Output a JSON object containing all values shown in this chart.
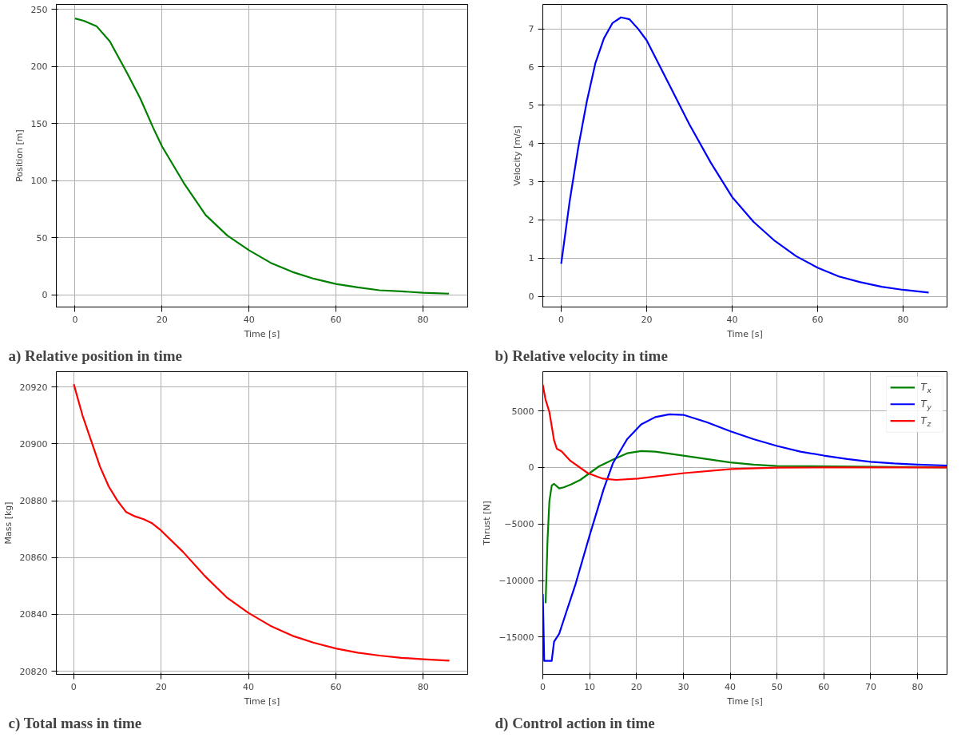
{
  "chart_data": [
    {
      "type": "line",
      "title": "a) Relative position in time",
      "xlabel": "Time [s]",
      "ylabel": "Position [m]",
      "grid": true,
      "legend": false,
      "xlim": [
        -4.3,
        90.3
      ],
      "ylim": [
        -10.7,
        254.3
      ],
      "xticks": [
        0,
        20,
        40,
        60,
        80
      ],
      "yticks": [
        0,
        50,
        100,
        150,
        200,
        250
      ],
      "series": [
        {
          "color": "#008000",
          "x": [
            0,
            2,
            5,
            8,
            10,
            12,
            15,
            18,
            20,
            25,
            30,
            35,
            40,
            45,
            50,
            55,
            60,
            65,
            70,
            75,
            80,
            86
          ],
          "values": [
            242,
            240,
            235,
            222,
            208,
            194,
            172,
            146,
            130,
            98,
            70,
            52,
            39,
            28,
            20,
            14,
            9.5,
            6.5,
            4,
            3,
            1.8,
            1
          ]
        }
      ]
    },
    {
      "type": "line",
      "title": "b) Relative velocity in time",
      "xlabel": "Time [s]",
      "ylabel": "Velocity [m/s]",
      "grid": true,
      "legend": false,
      "xlim": [
        -4.3,
        90.3
      ],
      "ylim": [
        -0.28,
        7.64
      ],
      "xticks": [
        0,
        20,
        40,
        60,
        80
      ],
      "yticks": [
        0,
        1,
        2,
        3,
        4,
        5,
        6,
        7
      ],
      "series": [
        {
          "color": "#0000ff",
          "x": [
            0,
            2,
            4,
            6,
            8,
            10,
            12,
            14,
            16,
            18,
            20,
            25,
            30,
            35,
            40,
            45,
            50,
            55,
            60,
            65,
            70,
            75,
            80,
            86
          ],
          "values": [
            0.85,
            2.5,
            3.9,
            5.1,
            6.1,
            6.75,
            7.15,
            7.3,
            7.25,
            7.0,
            6.7,
            5.6,
            4.5,
            3.5,
            2.6,
            1.95,
            1.45,
            1.05,
            0.75,
            0.52,
            0.37,
            0.25,
            0.17,
            0.1
          ]
        }
      ]
    },
    {
      "type": "line",
      "title": "c) Total mass in time",
      "xlabel": "Time [s]",
      "ylabel": "Mass [kg]",
      "grid": true,
      "legend": false,
      "xlim": [
        -4,
        90.2
      ],
      "ylim": [
        20818.9,
        20925.4
      ],
      "xticks": [
        0,
        20,
        40,
        60,
        80
      ],
      "yticks": [
        20820,
        20840,
        20860,
        20880,
        20900,
        20920
      ],
      "series": [
        {
          "color": "#ff0000",
          "x": [
            0,
            2,
            4,
            6,
            8,
            10,
            12,
            14,
            16,
            18,
            20,
            25,
            30,
            35,
            40,
            45,
            50,
            55,
            60,
            65,
            70,
            75,
            80,
            86
          ],
          "values": [
            20921,
            20910,
            20901,
            20892,
            20885,
            20880,
            20876,
            20874.5,
            20873.5,
            20872,
            20869.5,
            20862,
            20853.5,
            20846,
            20840.5,
            20836,
            20832.5,
            20830,
            20828,
            20826.5,
            20825.5,
            20824.7,
            20824.2,
            20823.7
          ]
        }
      ]
    },
    {
      "type": "line",
      "title": "d) Control action in time",
      "xlabel": "Time [s]",
      "ylabel": "Thrust [N]",
      "grid": true,
      "legend": "top right",
      "xlim": [
        0,
        86.3
      ],
      "ylim": [
        -18290,
        8465
      ],
      "xticks": [
        0,
        10,
        20,
        30,
        40,
        50,
        60,
        70,
        80
      ],
      "yticks": [
        {
          "value": -15000,
          "label": "−15000"
        },
        {
          "value": -10000,
          "label": "−10000"
        },
        {
          "value": -5000,
          "label": "−5000"
        },
        0,
        5000
      ],
      "series": [
        {
          "name": "T$_{x}$",
          "color": "#008000",
          "x": [
            0.6,
            1,
            1.4,
            1.9,
            2.4,
            3.5,
            4.5,
            6,
            8,
            10,
            12,
            15,
            18,
            21,
            24,
            30,
            35,
            40,
            45,
            50,
            86.3
          ],
          "values": [
            -12000,
            -6500,
            -3000,
            -1600,
            -1450,
            -1850,
            -1750,
            -1500,
            -1100,
            -500,
            100,
            700,
            1250,
            1450,
            1400,
            1050,
            750,
            450,
            250,
            130,
            0
          ]
        },
        {
          "name": "T$_{y}$",
          "color": "#0000ff",
          "x": [
            0,
            0.3,
            1.9,
            2.4,
            3.5,
            5,
            7,
            10,
            13,
            15,
            18,
            21,
            24,
            27,
            30,
            35,
            40,
            45,
            50,
            55,
            60,
            65,
            70,
            75,
            80,
            86.3
          ],
          "values": [
            -11200,
            -17100,
            -17100,
            -15400,
            -14700,
            -12800,
            -10300,
            -6000,
            -1900,
            400,
            2500,
            3800,
            4450,
            4700,
            4650,
            4000,
            3200,
            2500,
            1900,
            1400,
            1050,
            750,
            500,
            350,
            250,
            170
          ]
        },
        {
          "name": "T$_{z}$",
          "color": "#ff0000",
          "x": [
            0,
            0.58,
            1.4,
            2.4,
            3,
            4,
            5.9,
            9.6,
            12.8,
            15.7,
            20.3,
            30.2,
            40.3,
            50,
            60,
            86.3
          ],
          "values": [
            7300,
            6000,
            4900,
            2400,
            1650,
            1420,
            580,
            -500,
            -990,
            -1100,
            -990,
            -500,
            -140,
            -20,
            0,
            0
          ]
        }
      ]
    }
  ]
}
